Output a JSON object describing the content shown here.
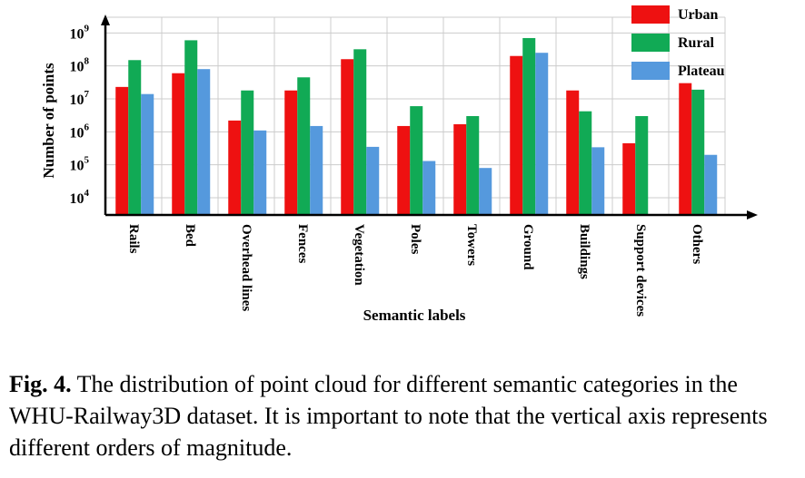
{
  "chart_data": {
    "type": "bar",
    "xlabel": "Semantic labels",
    "ylabel": "Number of points",
    "yscale": "log",
    "ylim": [
      3000,
      3000000000
    ],
    "ytick_labels": [
      {
        "base": "10",
        "exp": "4"
      },
      {
        "base": "10",
        "exp": "5"
      },
      {
        "base": "10",
        "exp": "6"
      },
      {
        "base": "10",
        "exp": "7"
      },
      {
        "base": "10",
        "exp": "8"
      },
      {
        "base": "10",
        "exp": "9"
      }
    ],
    "grid": "horizontal and vertical",
    "legend_position": "top-right",
    "categories": [
      "Rails",
      "Bed",
      "Overhead lines",
      "Fences",
      "Vegetation",
      "Poles",
      "Towers",
      "Ground",
      "Buildings",
      "Support devices",
      "Others"
    ],
    "series": [
      {
        "name": "Urban",
        "color": "#ee1111",
        "values": [
          23000000,
          60000000,
          2200000,
          18000000,
          160000000,
          1500000,
          1700000,
          200000000,
          18000000,
          450000,
          30000000
        ]
      },
      {
        "name": "Rural",
        "color": "#11aa55",
        "values": [
          150000000,
          600000000,
          18000000,
          45000000,
          320000000,
          6000000,
          3000000,
          700000000,
          4200000,
          3000000,
          19000000
        ]
      },
      {
        "name": "Plateau",
        "color": "#5599dd",
        "values": [
          14000000,
          80000000,
          1100000,
          1500000,
          350000,
          130000,
          80000,
          250000000,
          340000,
          null,
          200000
        ]
      }
    ]
  },
  "caption": {
    "label": "Fig. 4.",
    "text": " The distribution of point cloud for different semantic categories in the WHU-Railway3D dataset. It is important to note that the vertical axis represents different orders of magnitude."
  }
}
